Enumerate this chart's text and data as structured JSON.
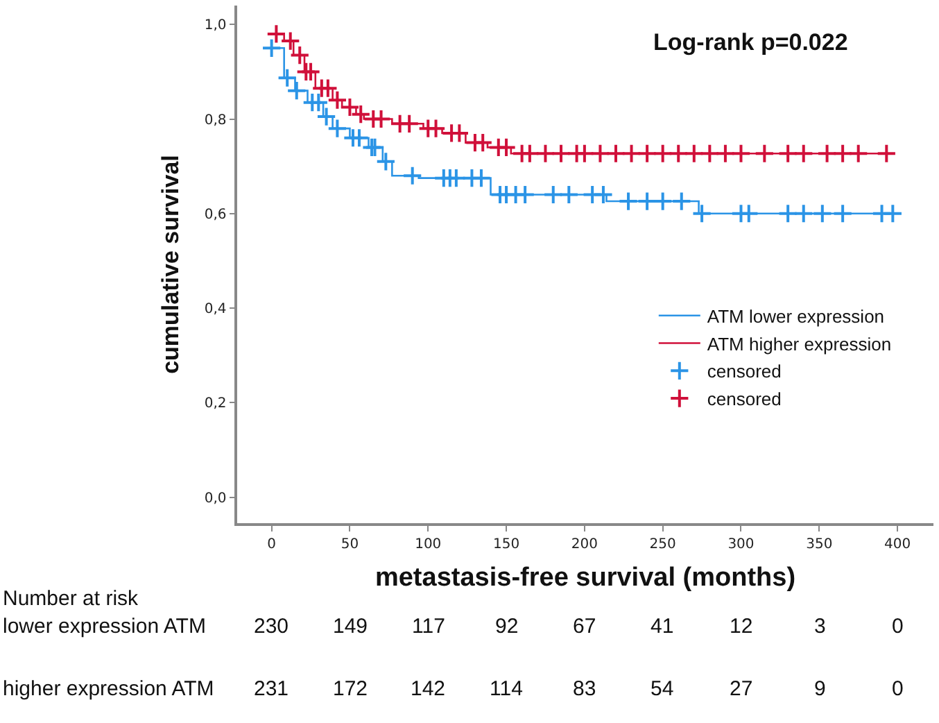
{
  "chart_data": {
    "type": "step",
    "xlabel": "metastasis-free survival (months)",
    "ylabel": "cumulative survival",
    "xlim": [
      -22,
      423
    ],
    "ylim": [
      -0.055,
      1.04
    ],
    "xticks": [
      0,
      50,
      100,
      150,
      200,
      250,
      300,
      350,
      400
    ],
    "yticks": [
      {
        "value": 0,
        "label": "0,0"
      },
      {
        "value": 0.2,
        "label": "0,2"
      },
      {
        "value": 0.4,
        "label": "0,4"
      },
      {
        "value": 0.6,
        "label": "0,6"
      },
      {
        "value": 0.8,
        "label": "0,8"
      },
      {
        "value": 1.0,
        "label": "1,0"
      }
    ],
    "legend": "bottom right",
    "series": [
      {
        "name": "ATM lower expression",
        "color": "#2b94e6",
        "x": [
          0,
          8,
          15,
          23,
          33,
          39,
          50,
          62,
          71,
          77,
          94,
          138,
          140,
          214,
          273,
          397
        ],
        "values": [
          0.95,
          0.887,
          0.86,
          0.835,
          0.805,
          0.78,
          0.76,
          0.74,
          0.71,
          0.68,
          0.675,
          0.675,
          0.64,
          0.626,
          0.6,
          0.6
        ]
      },
      {
        "name": "ATM higher expression",
        "color": "#d0103a",
        "x": [
          0,
          8,
          14,
          21,
          28,
          39,
          45,
          54,
          59,
          77,
          97,
          109,
          124,
          138,
          153,
          393
        ],
        "values": [
          0.98,
          0.965,
          0.935,
          0.9,
          0.865,
          0.84,
          0.825,
          0.81,
          0.8,
          0.79,
          0.78,
          0.77,
          0.75,
          0.74,
          0.727,
          0.727
        ]
      },
      {
        "name": "censored",
        "type": "scatter",
        "marker": "cross",
        "color": "#2b94e6",
        "x": [
          0,
          10,
          16,
          26,
          30,
          35,
          42,
          52,
          56,
          64,
          66,
          73,
          90,
          110,
          114,
          118,
          128,
          134,
          146,
          150,
          156,
          162,
          180,
          190,
          205,
          212,
          228,
          240,
          250,
          262,
          275,
          300,
          305,
          330,
          340,
          352,
          365,
          390,
          397
        ],
        "values": [
          0.95,
          0.887,
          0.86,
          0.835,
          0.835,
          0.805,
          0.78,
          0.76,
          0.76,
          0.74,
          0.74,
          0.71,
          0.68,
          0.675,
          0.675,
          0.675,
          0.675,
          0.675,
          0.64,
          0.64,
          0.64,
          0.64,
          0.64,
          0.64,
          0.64,
          0.64,
          0.626,
          0.626,
          0.626,
          0.626,
          0.6,
          0.6,
          0.6,
          0.6,
          0.6,
          0.6,
          0.6,
          0.6,
          0.6
        ]
      },
      {
        "name": "censored",
        "type": "scatter",
        "marker": "cross",
        "color": "#d0103a",
        "x": [
          3,
          12,
          18,
          22,
          25,
          32,
          36,
          42,
          50,
          57,
          65,
          70,
          82,
          88,
          100,
          105,
          115,
          120,
          130,
          135,
          145,
          150,
          160,
          165,
          175,
          185,
          195,
          200,
          210,
          220,
          230,
          240,
          250,
          260,
          270,
          280,
          290,
          300,
          315,
          330,
          340,
          355,
          365,
          375,
          393
        ],
        "values": [
          0.98,
          0.965,
          0.935,
          0.9,
          0.9,
          0.865,
          0.865,
          0.84,
          0.825,
          0.81,
          0.8,
          0.8,
          0.79,
          0.79,
          0.78,
          0.78,
          0.77,
          0.77,
          0.75,
          0.75,
          0.74,
          0.74,
          0.727,
          0.727,
          0.727,
          0.727,
          0.727,
          0.727,
          0.727,
          0.727,
          0.727,
          0.727,
          0.727,
          0.727,
          0.727,
          0.727,
          0.727,
          0.727,
          0.727,
          0.727,
          0.727,
          0.727,
          0.727,
          0.727,
          0.727
        ]
      }
    ],
    "annotations": [
      "Log-rank p=0.022",
      "Number at risk",
      "lower expression ATM",
      "230",
      "149",
      "117",
      "92",
      "67",
      "41",
      "12",
      "3",
      "0",
      "higher expression ATM",
      "231",
      "172",
      "142",
      "114",
      "83",
      "54",
      "27",
      "9",
      "0"
    ]
  }
}
